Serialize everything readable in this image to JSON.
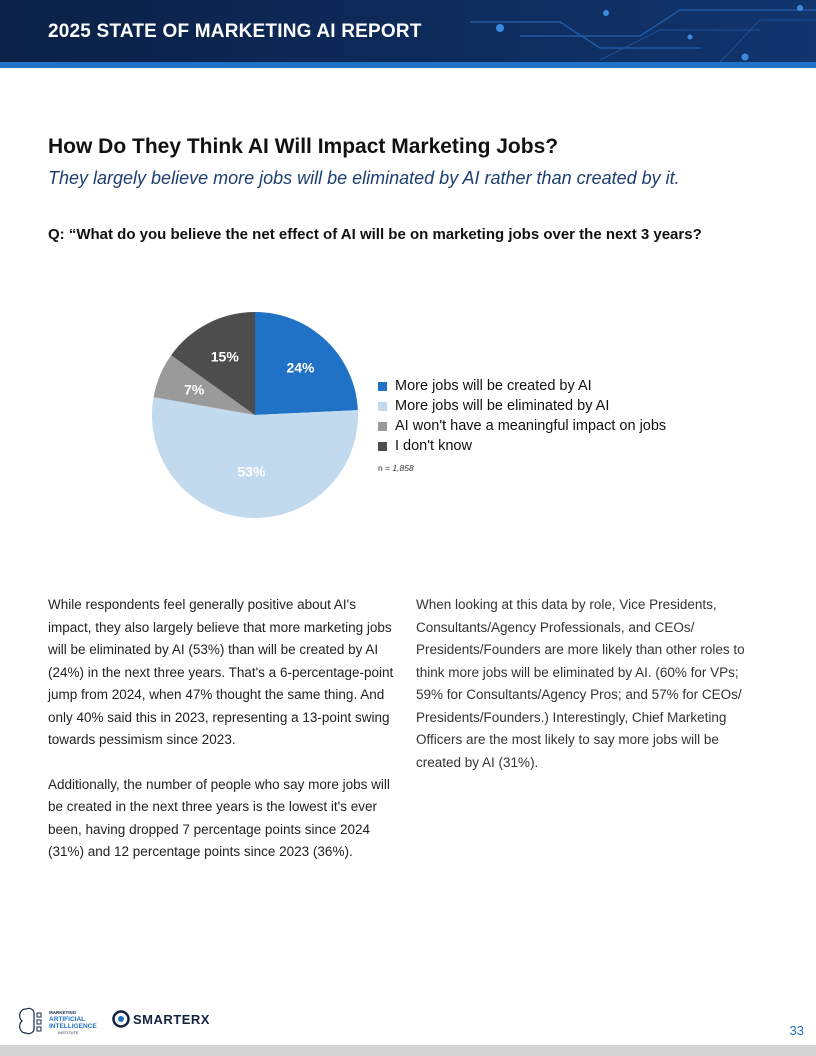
{
  "header": {
    "title": "2025 STATE OF MARKETING AI REPORT",
    "colors": {
      "bg": "#0e2b5c",
      "stripe": "#1f72c6"
    }
  },
  "section": {
    "title": "How Do They Think AI Will Impact Marketing Jobs?",
    "subtitle": "They largely believe more jobs will be eliminated by AI rather than created by it.",
    "question": "Q: “What do you believe the net effect of AI will be on marketing jobs over the next 3 years?"
  },
  "chart_data": {
    "type": "pie",
    "categories": [
      "More jobs will be created by AI",
      "More jobs will be eliminated by AI",
      "AI won't have a meaningful impact on jobs",
      "I don't know"
    ],
    "values": [
      24,
      53,
      7,
      15
    ],
    "labels": [
      "24%",
      "53%",
      "7%",
      "15%"
    ],
    "colors": [
      "#1f72c6",
      "#c2daee",
      "#9a9a9a",
      "#4d4d4d"
    ],
    "legend_position": "right",
    "sample_note_prefix": "n = ",
    "sample_size": "1,858"
  },
  "body": {
    "left": [
      "While respondents feel generally positive about AI's impact, they also largely believe that more marketing jobs will be eliminated by AI (53%) than will be created by AI (24%) in the next three years. That's a 6-percentage-point jump from 2024, when 47% thought the same thing. And only 40% said this in 2023, representing a 13-point swing towards pessimism since 2023.",
      "Additionally, the number of people who say more jobs will be created in the next three years is the lowest it's ever been, having dropped 7 percentage points since 2024 (31%) and 12 percentage points since 2023 (36%)."
    ],
    "right": [
      "When looking at this data by role, Vice Presidents, Consultants/Agency Professionals, and CEOs/ Presidents/Founders are more likely than other roles to think more jobs will be eliminated by AI. (60% for VPs; 59% for Consultants/Agency Pros; and 57% for CEOs/ Presidents/Founders.) Interestingly, Chief Marketing Officers are the most likely to say more jobs will be created by AI (31%)."
    ]
  },
  "footer": {
    "logo1_lines": [
      "MARKETING",
      "ARTIFICIAL",
      "INTELLIGENCE",
      "INSTITUTE"
    ],
    "logo2_text": "SMARTERX",
    "page_number": "33"
  }
}
